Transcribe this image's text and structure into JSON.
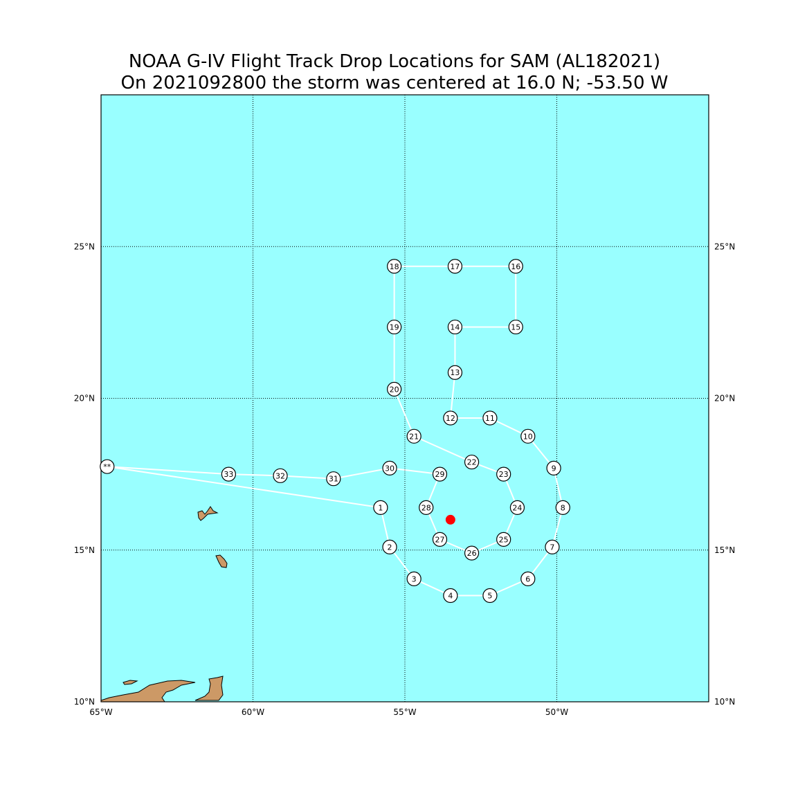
{
  "title": {
    "line1": "NOAA G-IV Flight Track Drop Locations for SAM (AL182021)",
    "line2": "On 2021092800 the storm was centered at 16.0 N; -53.50 W"
  },
  "map": {
    "lon_range": [
      -65,
      -45
    ],
    "lat_range": [
      10,
      30
    ],
    "ocean_color": "#99ffff",
    "land_color": "#cc9966",
    "grid_lons": [
      -60,
      -55,
      -50
    ],
    "grid_lats": [
      15,
      20,
      25
    ],
    "lon_ticks": [
      {
        "lon": -65,
        "label": "65°W"
      },
      {
        "lon": -60,
        "label": "60°W"
      },
      {
        "lon": -55,
        "label": "55°W"
      },
      {
        "lon": -50,
        "label": "50°W"
      }
    ],
    "lat_ticks": [
      {
        "lat": 10,
        "label": "10°N"
      },
      {
        "lat": 15,
        "label": "15°N"
      },
      {
        "lat": 20,
        "label": "20°N"
      },
      {
        "lat": 25,
        "label": "25°N"
      }
    ]
  },
  "storm_center": {
    "lat": 16.0,
    "lon": -53.5,
    "color": "#ff0000"
  },
  "track_color": "#ffffff",
  "origin": {
    "label": "**",
    "lat": 17.75,
    "lon": -64.8
  },
  "drops": [
    {
      "label": "1",
      "lat": 16.4,
      "lon": -55.8
    },
    {
      "label": "2",
      "lat": 15.1,
      "lon": -55.5
    },
    {
      "label": "3",
      "lat": 14.05,
      "lon": -54.7
    },
    {
      "label": "4",
      "lat": 13.5,
      "lon": -53.5
    },
    {
      "label": "5",
      "lat": 13.5,
      "lon": -52.2
    },
    {
      "label": "6",
      "lat": 14.05,
      "lon": -50.95
    },
    {
      "label": "7",
      "lat": 15.1,
      "lon": -50.15
    },
    {
      "label": "8",
      "lat": 16.4,
      "lon": -49.8
    },
    {
      "label": "9",
      "lat": 17.7,
      "lon": -50.1
    },
    {
      "label": "10",
      "lat": 18.75,
      "lon": -50.95
    },
    {
      "label": "11",
      "lat": 19.35,
      "lon": -52.2
    },
    {
      "label": "12",
      "lat": 19.35,
      "lon": -53.5
    },
    {
      "label": "13",
      "lat": 20.85,
      "lon": -53.35
    },
    {
      "label": "14",
      "lat": 22.35,
      "lon": -53.35
    },
    {
      "label": "15",
      "lat": 22.35,
      "lon": -51.35
    },
    {
      "label": "16",
      "lat": 24.35,
      "lon": -51.35
    },
    {
      "label": "17",
      "lat": 24.35,
      "lon": -53.35
    },
    {
      "label": "18",
      "lat": 24.35,
      "lon": -55.35
    },
    {
      "label": "19",
      "lat": 22.35,
      "lon": -55.35
    },
    {
      "label": "20",
      "lat": 20.3,
      "lon": -55.35
    },
    {
      "label": "21",
      "lat": 18.75,
      "lon": -54.7
    },
    {
      "label": "22",
      "lat": 17.9,
      "lon": -52.8
    },
    {
      "label": "23",
      "lat": 17.5,
      "lon": -51.75
    },
    {
      "label": "24",
      "lat": 16.4,
      "lon": -51.3
    },
    {
      "label": "25",
      "lat": 15.35,
      "lon": -51.75
    },
    {
      "label": "26",
      "lat": 14.9,
      "lon": -52.8
    },
    {
      "label": "27",
      "lat": 15.35,
      "lon": -53.85
    },
    {
      "label": "28",
      "lat": 16.4,
      "lon": -54.3
    },
    {
      "label": "29",
      "lat": 17.5,
      "lon": -53.85
    },
    {
      "label": "30",
      "lat": 17.7,
      "lon": -55.5
    },
    {
      "label": "31",
      "lat": 17.35,
      "lon": -57.35
    },
    {
      "label": "32",
      "lat": 17.45,
      "lon": -59.1
    },
    {
      "label": "33",
      "lat": 17.5,
      "lon": -60.8
    }
  ]
}
